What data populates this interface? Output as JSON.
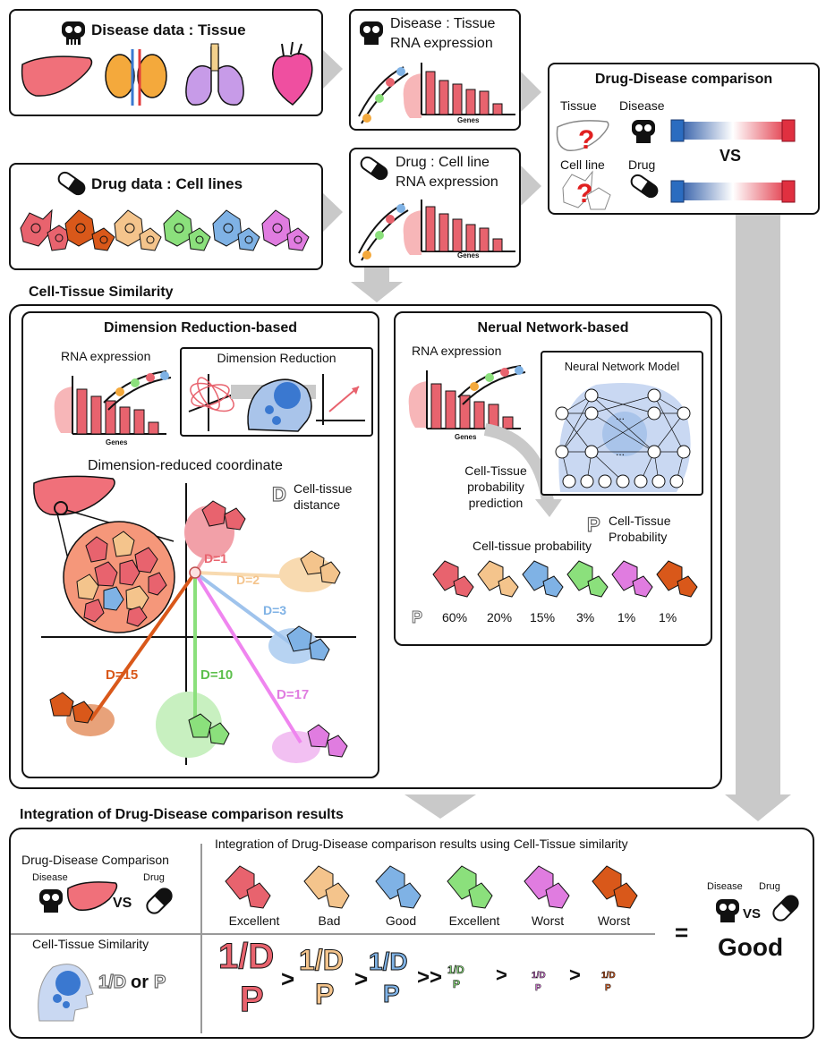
{
  "top": {
    "disease_title": "Disease data : Tissue",
    "drug_title": "Drug data : Cell lines",
    "disease_rna_l1": "Disease : Tissue",
    "disease_rna_l2": "RNA expression",
    "drug_rna_l1": "Drug : Cell line",
    "drug_rna_l2": "RNA expression",
    "genes": "Genes",
    "comparison_title": "Drug-Disease comparison",
    "tissue": "Tissue",
    "disease": "Disease",
    "cell_line": "Cell line",
    "drug": "Drug",
    "vs": "VS"
  },
  "similarity": {
    "section_title": "Cell-Tissue Similarity",
    "dr_title": "Dimension Reduction-based",
    "rna_expression": "RNA expression",
    "dim_reduction": "Dimension Reduction",
    "genes": "Genes",
    "coord_title": "Dimension-reduced coordinate",
    "distance_label_l1": "Cell-tissue",
    "distance_label_l2": "distance",
    "d_glyph": "D",
    "distances": [
      "D=1",
      "D=2",
      "D=3",
      "D=15",
      "D=10",
      "D=17"
    ],
    "nn_title": "Nerual Network-based",
    "nn_rna": "RNA expression",
    "nn_model": "Neural Network Model",
    "nn_dots": "...",
    "nn_genes": "Genes",
    "pred_l1": "Cell-Tissue",
    "pred_l2": "probability",
    "pred_l3": "prediction",
    "prob_l1": "Cell-Tissue",
    "prob_l2": "Probability",
    "p_glyph": "P",
    "prob_title": "Cell-tissue probability",
    "probabilities": [
      "60%",
      "20%",
      "15%",
      "3%",
      "1%",
      "1%"
    ]
  },
  "integration": {
    "section_title": "Integration of Drug-Disease comparison results",
    "header": "Integration of Drug-Disease comparison results using Cell-Tissue similarity",
    "comparison_label": "Drug-Disease Comparison",
    "disease": "Disease",
    "drug": "Drug",
    "vs": "VS",
    "similarity_label": "Cell-Tissue Similarity",
    "inv_d": "1/D",
    "or": "or",
    "p": "P",
    "ratings": [
      "Excellent",
      "Bad",
      "Good",
      "Excellent",
      "Worst",
      "Worst"
    ],
    "gt": ">",
    "gtgt": ">>",
    "equals": "=",
    "result": "Good"
  },
  "colors": {
    "red": "#e8636e",
    "orange": "#f4c48c",
    "blue": "#7fb2e5",
    "green": "#8be07c",
    "pink": "#e07ce0",
    "brown": "#d9581a",
    "liver": "#f0707a",
    "gray_arrow": "#c9c9c9"
  }
}
